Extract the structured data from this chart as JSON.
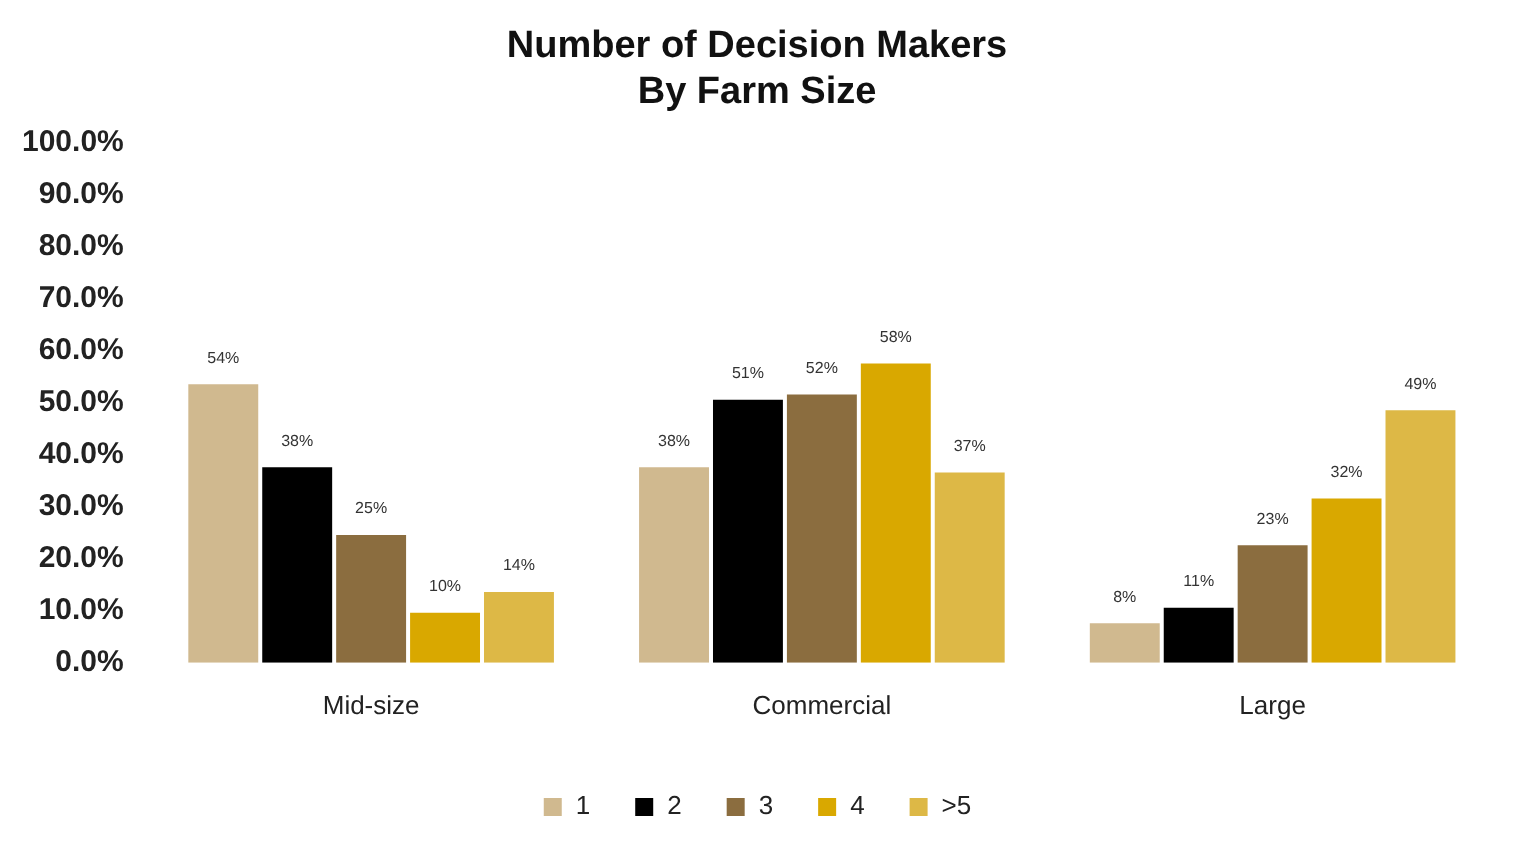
{
  "chart_data": {
    "type": "bar",
    "title": "Number of Decision Makers\nBy Farm Size",
    "categories": [
      "Mid-size",
      "Commercial",
      "Large"
    ],
    "series": [
      {
        "name": "1",
        "color": "#d0b98f",
        "values": [
          54,
          38,
          8
        ],
        "value_labels": [
          "54%",
          "38%",
          "8%"
        ]
      },
      {
        "name": "2",
        "color": "#000000",
        "values": [
          38,
          51,
          11
        ],
        "value_labels": [
          "38%",
          "51%",
          "11%"
        ]
      },
      {
        "name": "3",
        "color": "#8b6d3f",
        "values": [
          25,
          52,
          23
        ],
        "value_labels": [
          "25%",
          "52%",
          "23%"
        ]
      },
      {
        "name": "4",
        "color": "#d9a800",
        "values": [
          10,
          58,
          32
        ],
        "value_labels": [
          "10%",
          "58%",
          "32%"
        ]
      },
      {
        "name": ">5",
        "color": "#ddb846",
        "values": [
          14,
          37,
          49
        ],
        "value_labels": [
          "14%",
          "37%",
          "49%"
        ]
      }
    ],
    "ylim": [
      0,
      100
    ],
    "yticks": [
      {
        "value": 0,
        "label": "0.0%"
      },
      {
        "value": 10,
        "label": "10.0%"
      },
      {
        "value": 20,
        "label": "20.0%"
      },
      {
        "value": 30,
        "label": "30.0%"
      },
      {
        "value": 40,
        "label": "40.0%"
      },
      {
        "value": 50,
        "label": "50.0%"
      },
      {
        "value": 60,
        "label": "60.0%"
      },
      {
        "value": 70,
        "label": "70.0%"
      },
      {
        "value": 80,
        "label": "80.0%"
      },
      {
        "value": 90,
        "label": "90.0%"
      },
      {
        "value": 100,
        "label": "100.0%"
      }
    ],
    "grid": false,
    "legend": "bottom"
  }
}
